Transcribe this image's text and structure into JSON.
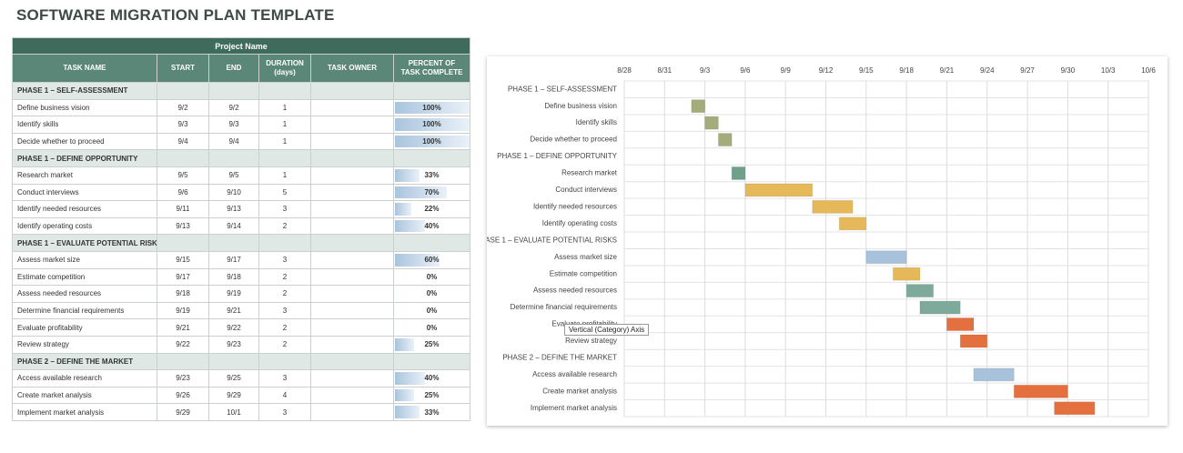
{
  "title": "SOFTWARE MIGRATION PLAN TEMPLATE",
  "table": {
    "project_name": "Project Name",
    "columns": [
      "TASK NAME",
      "START",
      "END",
      "DURATION (days)",
      "TASK OWNER",
      "PERCENT OF TASK COMPLETE"
    ],
    "rows": [
      {
        "phase": "PHASE 1 – SELF-ASSESSMENT"
      },
      {
        "task": "Define business vision",
        "start": "9/2",
        "end": "9/2",
        "duration": 1,
        "percent": {
          "value": 100,
          "label": "100%"
        }
      },
      {
        "task": "Identify skills",
        "start": "9/3",
        "end": "9/3",
        "duration": 1,
        "percent": {
          "value": 100,
          "label": "100%"
        }
      },
      {
        "task": "Decide whether to proceed",
        "start": "9/4",
        "end": "9/4",
        "duration": 1,
        "percent": {
          "value": 100,
          "label": "100%"
        }
      },
      {
        "phase": "PHASE 1 – DEFINE OPPORTUNITY"
      },
      {
        "task": "Research market",
        "start": "9/5",
        "end": "9/5",
        "duration": 1,
        "percent": {
          "value": 33,
          "label": "33%"
        }
      },
      {
        "task": "Conduct interviews",
        "start": "9/6",
        "end": "9/10",
        "duration": 5,
        "percent": {
          "value": 70,
          "label": "70%"
        }
      },
      {
        "task": "Identify needed resources",
        "start": "9/11",
        "end": "9/13",
        "duration": 3,
        "percent": {
          "value": 22,
          "label": "22%"
        }
      },
      {
        "task": "Identify operating costs",
        "start": "9/13",
        "end": "9/14",
        "duration": 2,
        "percent": {
          "value": 40,
          "label": "40%"
        }
      },
      {
        "phase": "PHASE 1 – EVALUATE POTENTIAL RISKS"
      },
      {
        "task": "Assess market size",
        "start": "9/15",
        "end": "9/17",
        "duration": 3,
        "percent": {
          "value": 60,
          "label": "60%"
        }
      },
      {
        "task": "Estimate competition",
        "start": "9/17",
        "end": "9/18",
        "duration": 2,
        "percent": {
          "value": 0,
          "label": "0%"
        }
      },
      {
        "task": "Assess needed resources",
        "start": "9/18",
        "end": "9/19",
        "duration": 2,
        "percent": {
          "value": 0,
          "label": "0%"
        }
      },
      {
        "task": "Determine financial requirements",
        "start": "9/19",
        "end": "9/21",
        "duration": 3,
        "percent": {
          "value": 0,
          "label": "0%"
        }
      },
      {
        "task": "Evaluate profitability",
        "start": "9/21",
        "end": "9/22",
        "duration": 2,
        "percent": {
          "value": 0,
          "label": "0%"
        }
      },
      {
        "task": "Review strategy",
        "start": "9/22",
        "end": "9/23",
        "duration": 2,
        "percent": {
          "value": 25,
          "label": "25%"
        }
      },
      {
        "phase": "PHASE 2 – DEFINE THE MARKET"
      },
      {
        "task": "Access available research",
        "start": "9/23",
        "end": "9/25",
        "duration": 3,
        "percent": {
          "value": 40,
          "label": "40%"
        }
      },
      {
        "task": "Create market analysis",
        "start": "9/26",
        "end": "9/29",
        "duration": 4,
        "percent": {
          "value": 25,
          "label": "25%"
        }
      },
      {
        "task": "Implement market analysis",
        "start": "9/29",
        "end": "10/1",
        "duration": 3,
        "percent": {
          "value": 33,
          "label": "33%"
        }
      }
    ]
  },
  "chart_data": {
    "type": "gantt",
    "categories": [
      "PHASE 1 – SELF-ASSESSMENT",
      "Define business vision",
      "Identify skills",
      "Decide whether to proceed",
      "PHASE 1 – DEFINE OPPORTUNITY",
      "Research market",
      "Conduct interviews",
      "Identify needed resources",
      "Identify operating costs",
      "PHASE 1 – EVALUATE POTENTIAL RISKS",
      "Assess market size",
      "Estimate competition",
      "Assess needed resources",
      "Determine financial requirements",
      "Evaluate profitability",
      "Review strategy",
      "PHASE 2 – DEFINE THE MARKET",
      "Access available research",
      "Create market analysis",
      "Implement market analysis"
    ],
    "start": [
      null,
      245,
      246,
      247,
      null,
      248,
      249,
      254,
      256,
      null,
      258,
      260,
      261,
      262,
      264,
      265,
      null,
      266,
      269,
      272
    ],
    "duration": [
      null,
      1,
      1,
      1,
      null,
      1,
      5,
      3,
      2,
      null,
      3,
      2,
      2,
      3,
      2,
      2,
      null,
      3,
      4,
      3
    ],
    "colors": [
      null,
      "#a3ad7c",
      "#a3ad7c",
      "#a3ad7c",
      null,
      "#6fa08c",
      "#e5b95a",
      "#e5b95a",
      "#e5b95a",
      null,
      "#a9c2dc",
      "#e5b95a",
      "#7eaa9b",
      "#7eaa9b",
      "#e4703f",
      "#e4703f",
      null,
      "#a9c2dc",
      "#e4703f",
      "#e4703f"
    ],
    "xlim": [
      240,
      279
    ],
    "xticks": [
      {
        "value": 240,
        "label": "8/28"
      },
      {
        "value": 243,
        "label": "8/31"
      },
      {
        "value": 246,
        "label": "9/3"
      },
      {
        "value": 249,
        "label": "9/6"
      },
      {
        "value": 252,
        "label": "9/9"
      },
      {
        "value": 255,
        "label": "9/12"
      },
      {
        "value": 258,
        "label": "9/15"
      },
      {
        "value": 261,
        "label": "9/18"
      },
      {
        "value": 264,
        "label": "9/21"
      },
      {
        "value": 267,
        "label": "9/24"
      },
      {
        "value": 270,
        "label": "9/27"
      },
      {
        "value": 273,
        "label": "9/30"
      },
      {
        "value": 276,
        "label": "10/3"
      },
      {
        "value": 279,
        "label": "10/6"
      }
    ],
    "grid": true
  },
  "tooltip": "Vertical (Category) Axis"
}
